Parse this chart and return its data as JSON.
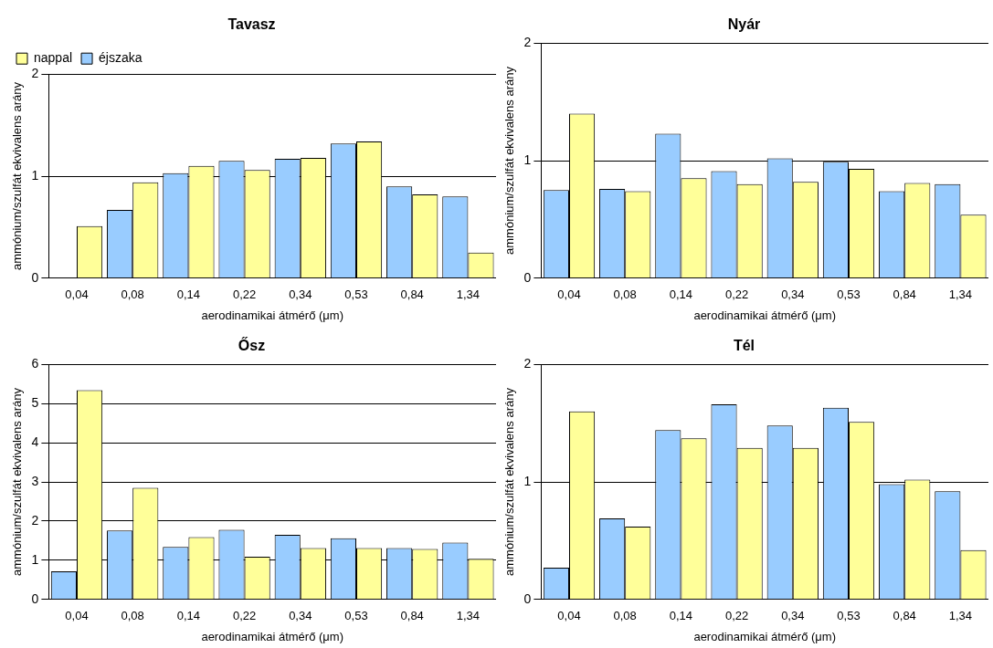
{
  "chart_data": [
    {
      "type": "bar",
      "title": "Tavasz",
      "xlabel": "aerodinamikai átmérő (μm)",
      "ylabel": "ammónium/szulfát ekvivalens arány",
      "categories": [
        "0,04",
        "0,08",
        "0,14",
        "0,22",
        "0,34",
        "0,53",
        "0,84",
        "1,34"
      ],
      "series": [
        {
          "name": "éjszaka",
          "color": "#99ccff",
          "values": [
            null,
            0.67,
            1.03,
            1.15,
            1.17,
            1.32,
            0.9,
            0.8
          ]
        },
        {
          "name": "nappal",
          "color": "#ffff99",
          "values": [
            0.51,
            0.94,
            1.1,
            1.06,
            1.18,
            1.34,
            0.82,
            0.25
          ]
        }
      ],
      "ylim": [
        0,
        2
      ],
      "yticks": [
        0,
        1,
        2
      ],
      "grid": "y",
      "legend": "top left"
    },
    {
      "type": "bar",
      "title": "Nyár",
      "xlabel": "aerodinamikai átmérő (μm)",
      "ylabel": "ammónium/szulfát ekvivalens arány",
      "categories": [
        "0,04",
        "0,08",
        "0,14",
        "0,22",
        "0,34",
        "0,53",
        "0,84",
        "1,34"
      ],
      "series": [
        {
          "color": "#99ccff",
          "values": [
            0.75,
            0.76,
            1.23,
            0.91,
            1.02,
            0.99,
            0.74,
            0.8
          ]
        },
        {
          "color": "#ffff99",
          "values": [
            1.4,
            0.74,
            0.85,
            0.8,
            0.82,
            0.93,
            0.81,
            0.54
          ]
        }
      ],
      "ylim": [
        0,
        2
      ],
      "yticks": [
        0,
        1,
        2
      ],
      "grid": "y"
    },
    {
      "type": "bar",
      "title": "Ősz",
      "xlabel": "aerodinamikai átmérő (μm)",
      "ylabel": "ammónium/szulfát ekvivalens arány",
      "categories": [
        "0,04",
        "0,08",
        "0,14",
        "0,22",
        "0,34",
        "0,53",
        "0,84",
        "1,34"
      ],
      "series": [
        {
          "color": "#99ccff",
          "values": [
            0.72,
            1.76,
            1.34,
            1.78,
            1.65,
            1.56,
            1.31,
            1.45
          ]
        },
        {
          "color": "#ffff99",
          "values": [
            5.34,
            2.85,
            1.59,
            1.09,
            1.31,
            1.31,
            1.29,
            1.04
          ]
        }
      ],
      "ylim": [
        0,
        6
      ],
      "yticks": [
        0,
        1,
        2,
        3,
        4,
        5,
        6
      ],
      "grid": "y"
    },
    {
      "type": "bar",
      "title": "Tél",
      "xlabel": "aerodinamikai átmérő (μm)",
      "ylabel": "ammónium/szulfát ekvivalens arány",
      "categories": [
        "0,04",
        "0,08",
        "0,14",
        "0,22",
        "0,34",
        "0,53",
        "0,84",
        "1,34"
      ],
      "series": [
        {
          "color": "#99ccff",
          "values": [
            0.27,
            0.69,
            1.44,
            1.66,
            1.48,
            1.63,
            0.98,
            0.92
          ]
        },
        {
          "color": "#ffff99",
          "values": [
            1.6,
            0.62,
            1.37,
            1.29,
            1.29,
            1.51,
            1.02,
            0.42
          ]
        }
      ],
      "ylim": [
        0,
        2
      ],
      "yticks": [
        0,
        1,
        2
      ],
      "grid": "y"
    }
  ]
}
